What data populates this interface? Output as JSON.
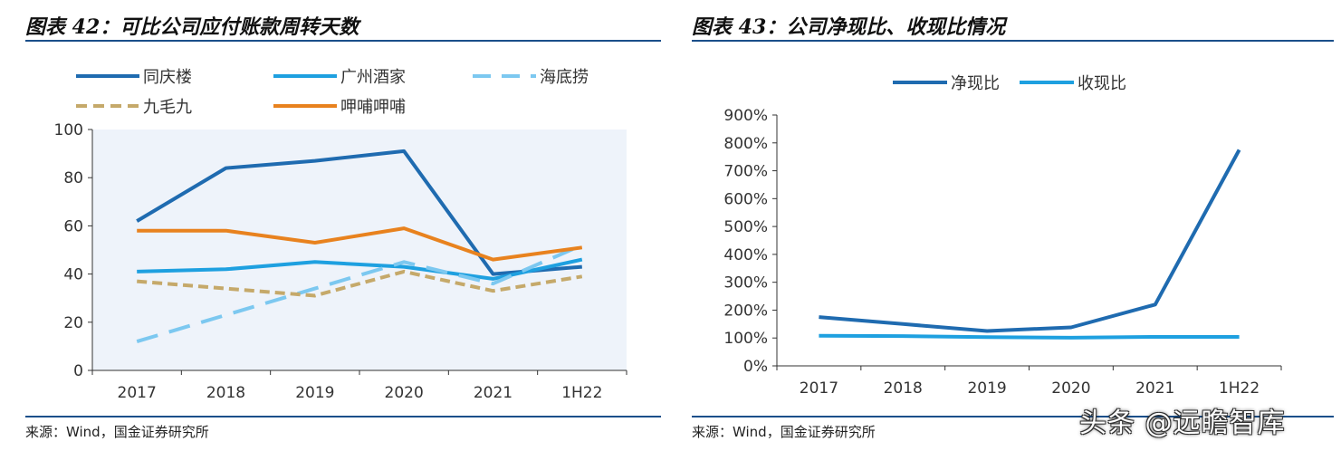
{
  "left": {
    "title": "图表 42：可比公司应付账款周转天数",
    "source": "来源：Wind，国金证券研究所"
  },
  "right": {
    "title": "图表 43：公司净现比、收现比情况",
    "source": "来源：Wind，国金证券研究所"
  },
  "watermark": "头条 @远瞻智库",
  "chart_data": [
    {
      "type": "line",
      "title": "可比公司应付账款周转天数",
      "categories": [
        "2017",
        "2018",
        "2019",
        "2020",
        "2021",
        "1H22"
      ],
      "ylim": [
        0,
        100
      ],
      "yticks": [
        "0",
        "20",
        "40",
        "60",
        "80",
        "100"
      ],
      "legend_position": "top",
      "series": [
        {
          "name": "同庆楼",
          "values": [
            62,
            84,
            87,
            91,
            40,
            43
          ],
          "color": "#1f6bb0",
          "dash": "solid"
        },
        {
          "name": "广州酒家",
          "values": [
            41,
            42,
            45,
            43,
            38,
            46
          ],
          "color": "#1ea0e0",
          "dash": "solid"
        },
        {
          "name": "海底捞",
          "values": [
            12,
            23,
            34,
            45,
            36,
            52
          ],
          "color": "#7cc8f0",
          "dash": "longdash"
        },
        {
          "name": "九毛九",
          "values": [
            37,
            34,
            31,
            41,
            33,
            39
          ],
          "color": "#c5a96a",
          "dash": "dash"
        },
        {
          "name": "呷哺呷哺",
          "values": [
            58,
            58,
            53,
            59,
            46,
            51
          ],
          "color": "#e8821e",
          "dash": "solid"
        }
      ]
    },
    {
      "type": "line",
      "title": "公司净现比、收现比情况",
      "categories": [
        "2017",
        "2018",
        "2019",
        "2020",
        "2021",
        "1H22"
      ],
      "ylim": [
        0,
        900
      ],
      "yticks": [
        "0%",
        "100%",
        "200%",
        "300%",
        "400%",
        "500%",
        "600%",
        "700%",
        "800%",
        "900%"
      ],
      "legend_position": "top",
      "series": [
        {
          "name": "净现比",
          "values": [
            175,
            150,
            125,
            138,
            220,
            775
          ],
          "color": "#1f6bb0",
          "dash": "solid"
        },
        {
          "name": "收现比",
          "values": [
            108,
            107,
            103,
            101,
            104,
            104
          ],
          "color": "#1ea0e0",
          "dash": "solid"
        }
      ]
    }
  ]
}
